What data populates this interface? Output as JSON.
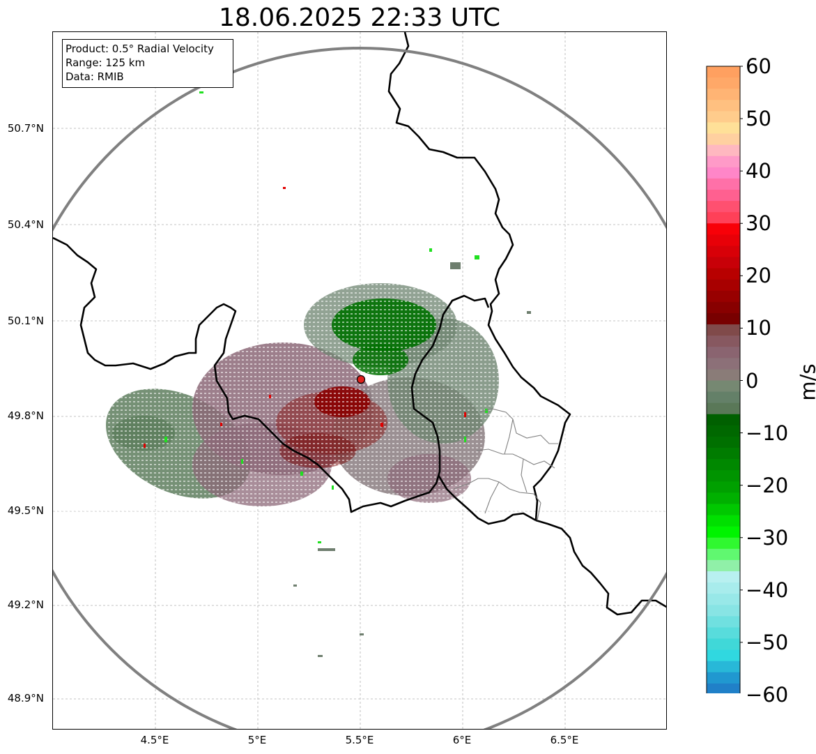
{
  "title": "18.06.2025 22:33 UTC",
  "info_box": {
    "product": "Product: 0.5° Radial Velocity",
    "range": "Range: 125 km",
    "source": "Data: RMIB"
  },
  "axes": {
    "lat_ticks": [
      "50.7°N",
      "50.4°N",
      "50.1°N",
      "49.8°N",
      "49.5°N",
      "49.2°N",
      "48.9°N"
    ],
    "lon_ticks": [
      "4.5°E",
      "5°E",
      "5.5°E",
      "6°E",
      "6.5°E"
    ],
    "grid": true
  },
  "radar_site": {
    "lon": 5.5,
    "lat": 49.91,
    "marker_color": "#e0201c"
  },
  "range_ring_color": "#808080",
  "colorbar": {
    "label": "m/s",
    "min": -60,
    "max": 60,
    "ticks": [
      "60",
      "50",
      "40",
      "30",
      "20",
      "10",
      "0",
      "−10",
      "−20",
      "−30",
      "−40",
      "−50",
      "−60"
    ],
    "colors_top_to_bottom": [
      "#ffa060",
      "#ffa868",
      "#ffb474",
      "#ffc080",
      "#ffcc8c",
      "#ffe098",
      "#ffd0a0",
      "#ffb8c0",
      "#ff9ac8",
      "#ff86c8",
      "#ff70a8",
      "#ff6090",
      "#ff5070",
      "#ff4058",
      "#f80008",
      "#e80008",
      "#d80008",
      "#c80008",
      "#b80000",
      "#a80000",
      "#980000",
      "#880000",
      "#780000",
      "#804a4a",
      "#875860",
      "#8a6470",
      "#8c7078",
      "#8a7c78",
      "#768872",
      "#648068",
      "#5a7858",
      "#006000",
      "#006800",
      "#007000",
      "#007c00",
      "#008800",
      "#009400",
      "#00a000",
      "#00b000",
      "#00c800",
      "#00e000",
      "#00f400",
      "#30f830",
      "#60f870",
      "#90f0a8",
      "#b8f0f0",
      "#a8ecec",
      "#98e8e8",
      "#88e4e4",
      "#70e0e0",
      "#58dcdc",
      "#40d8d8",
      "#30d8e0",
      "#28b8d8",
      "#2098d0",
      "#2080c8"
    ]
  },
  "legend_colors": {
    "echo_green_dark": "#007000",
    "echo_green_bright": "#20e020",
    "echo_gray_green": "#5e7e5e",
    "echo_mauve": "#8c6878",
    "echo_dark_red": "#8a0000",
    "echo_red": "#e00000"
  }
}
